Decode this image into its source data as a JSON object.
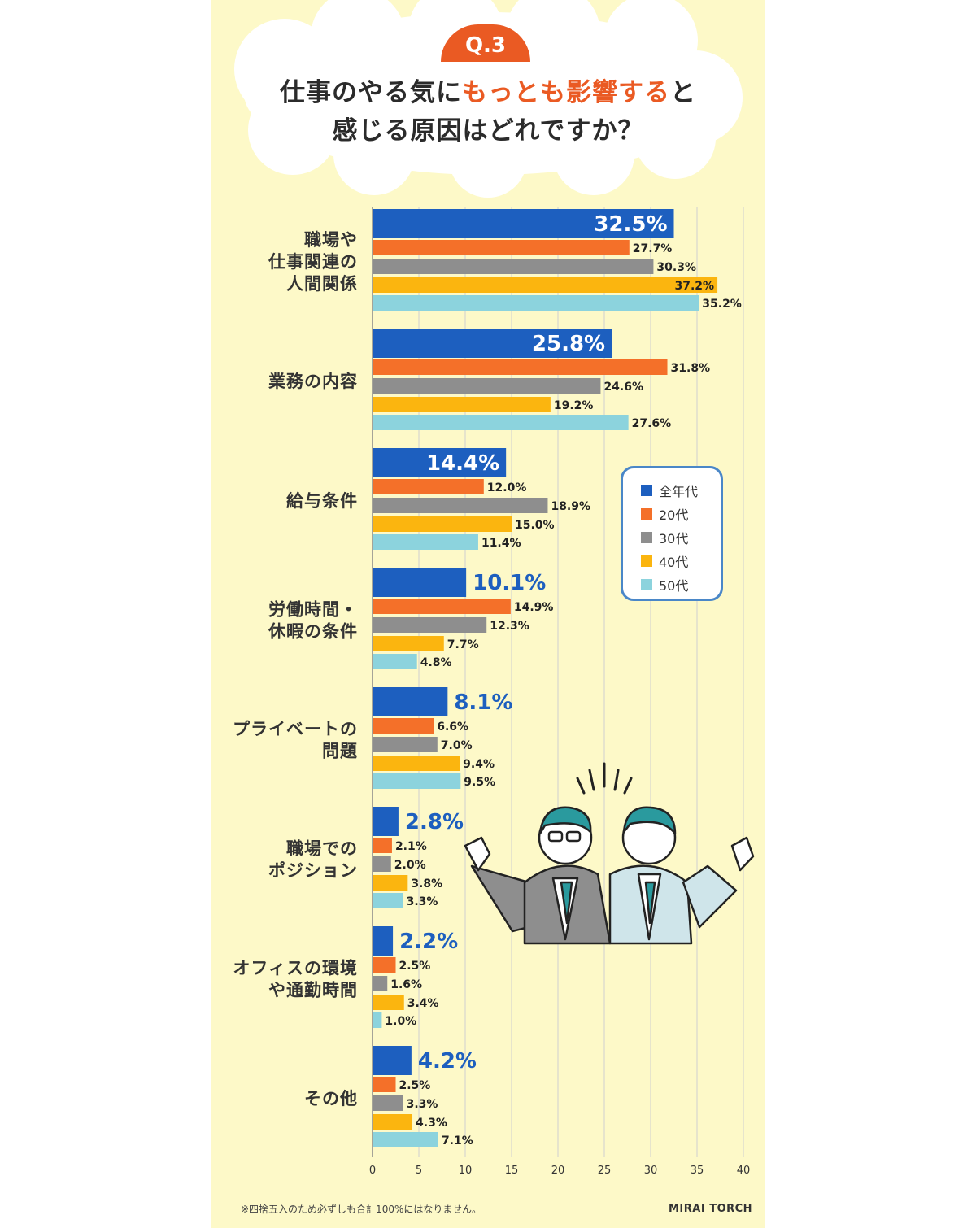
{
  "header": {
    "badge": "Q.3",
    "line1_before": "仕事のやる気に",
    "line1_highlight": "もっとも影響する",
    "line1_after": "と",
    "line2": "感じる原因はどれですか？"
  },
  "footnote": "※四捨五入のため必ずしも合計100%にはなりません。",
  "logo": "MIRAI TORCH",
  "colors": {
    "all": "#1d5fbf",
    "20s": "#f47029",
    "30s": "#8e8e8e",
    "40s": "#fbb50f",
    "50s": "#8cd3dd",
    "accent": "#ea5a23",
    "background": "#fdf9c8"
  },
  "chart_data": {
    "type": "bar",
    "orientation": "horizontal",
    "categories": [
      "職場や\n仕事関連の\n人間関係",
      "業務の内容",
      "給与条件",
      "労働時間・\n休暇の条件",
      "プライベートの\n問題",
      "職場での\nポジション",
      "オフィスの環境\nや通勤時間",
      "その他"
    ],
    "series": [
      {
        "name": "全年代",
        "values": [
          32.5,
          25.8,
          14.4,
          10.1,
          8.1,
          2.8,
          2.2,
          4.2
        ]
      },
      {
        "name": "20代",
        "values": [
          27.7,
          31.8,
          12.0,
          14.9,
          6.6,
          2.1,
          2.5,
          2.5
        ]
      },
      {
        "name": "30代",
        "values": [
          30.3,
          24.6,
          18.9,
          12.3,
          7.0,
          2.0,
          1.6,
          3.3
        ]
      },
      {
        "name": "40代",
        "values": [
          37.2,
          19.2,
          15.0,
          7.7,
          9.4,
          3.8,
          3.4,
          4.3
        ]
      },
      {
        "name": "50代",
        "values": [
          35.2,
          27.6,
          11.4,
          4.8,
          9.5,
          3.3,
          1.0,
          7.1
        ]
      }
    ],
    "xlim": [
      0,
      40
    ],
    "xticks": [
      0,
      5,
      10,
      15,
      20,
      25,
      30,
      35,
      40
    ],
    "value_suffix": "%",
    "grid": true,
    "legend_position": "right"
  }
}
